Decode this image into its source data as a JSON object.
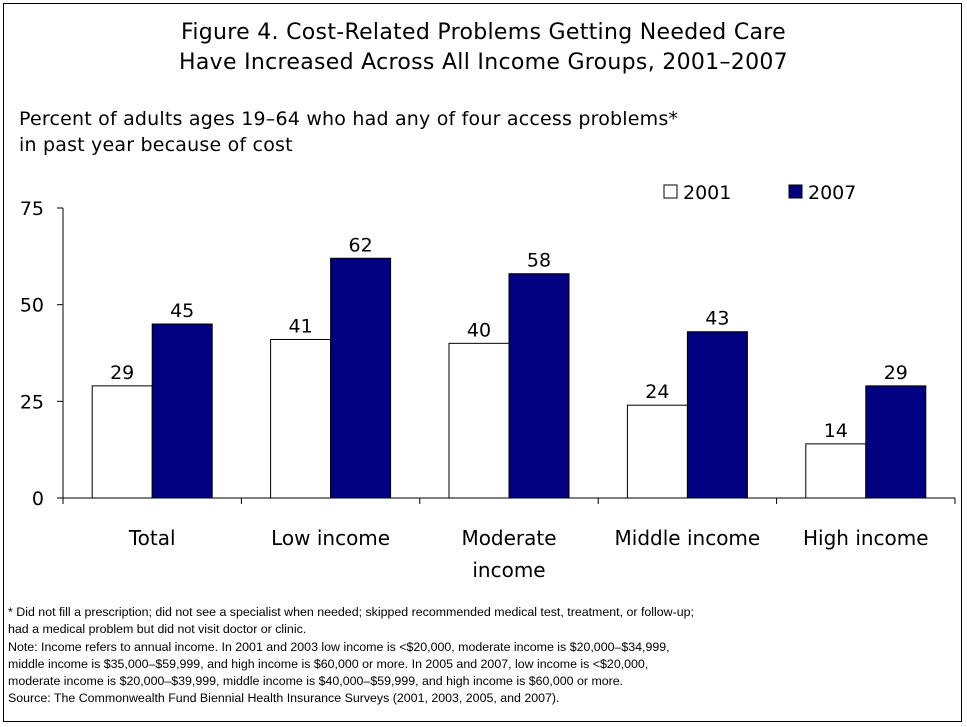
{
  "chart_data": {
    "type": "bar",
    "title": [
      "Figure 4. Cost-Related Problems Getting Needed Care",
      "Have Increased Across All Income Groups, 2001–2007"
    ],
    "subtitle": [
      "Percent of adults ages 19–64 who had any of four access problems*",
      "in past year because of cost"
    ],
    "categories": [
      [
        "Total"
      ],
      [
        "Low income"
      ],
      [
        "Moderate",
        "income"
      ],
      [
        "Middle income"
      ],
      [
        "High income"
      ]
    ],
    "series": [
      {
        "name": "2001",
        "color": "#ffffff",
        "values": [
          29,
          41,
          40,
          24,
          14
        ]
      },
      {
        "name": "2007",
        "color": "#000080",
        "values": [
          45,
          62,
          58,
          43,
          29
        ]
      }
    ],
    "ylim": [
      0,
      75
    ],
    "yticks": [
      0,
      25,
      50,
      75
    ],
    "legend_position": "top-right",
    "grid": false
  },
  "notes": [
    "* Did not fill a prescription; did not see a specialist when needed; skipped recommended medical test, treatment, or follow-up;",
    "had a medical problem but did not visit doctor or clinic.",
    "Note: Income refers to annual income. In 2001 and 2003 low income is <$20,000, moderate income is $20,000–$34,999,",
    "middle income is $35,000–$59,999, and high income is $60,000 or more. In 2005 and 2007, low income is <$20,000,",
    "moderate income is $20,000–$39,999, middle income is $40,000–$59,999, and high income is $60,000 or more.",
    "Source: The Commonwealth Fund Biennial Health Insurance Surveys (2001, 2003, 2005, and 2007)."
  ]
}
